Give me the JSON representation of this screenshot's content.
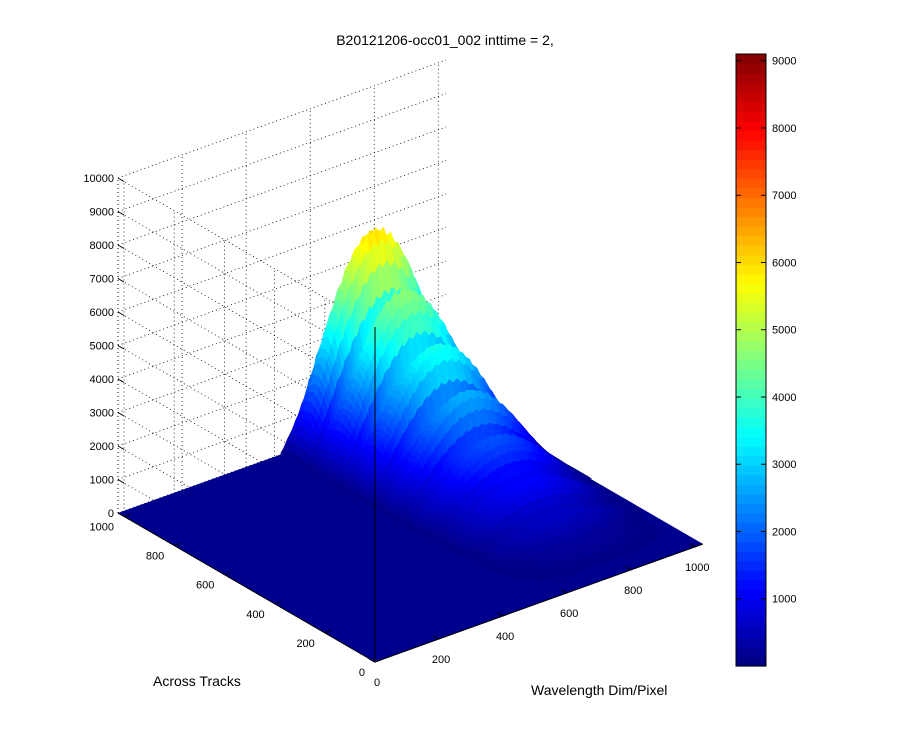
{
  "chart_data": {
    "type": "surface",
    "title": "B20121206-occ01_002 inttime = 2,",
    "xlabel": "Wavelength Dim/Pixel",
    "ylabel": "Across Tracks",
    "zlabel": "",
    "xlim": [
      0,
      1024
    ],
    "ylim": [
      0,
      1024
    ],
    "zlim": [
      0,
      10000
    ],
    "x_ticks": [
      "0",
      "200",
      "400",
      "600",
      "800",
      "1000"
    ],
    "y_ticks": [
      "0",
      "200",
      "400",
      "600",
      "800",
      "1000"
    ],
    "z_ticks": [
      "0",
      "1000",
      "2000",
      "3000",
      "4000",
      "5000",
      "6000",
      "7000",
      "8000",
      "9000",
      "10000"
    ],
    "grid": true,
    "colormap": "jet",
    "colorbar": {
      "range": [
        0,
        9100
      ],
      "ticks": [
        "1000",
        "2000",
        "3000",
        "4000",
        "5000",
        "6000",
        "7000",
        "8000",
        "9000"
      ],
      "colors": [
        "#00008f",
        "#0000ff",
        "#00ffff",
        "#ffff00",
        "#ff0000",
        "#800000"
      ]
    },
    "signal_region": {
      "x_range": [
        500,
        1024
      ],
      "y_range": [
        0,
        1024
      ],
      "peak_value": 6500,
      "peak_x": 780,
      "peak_y": 1000
    },
    "background_value": 0
  }
}
